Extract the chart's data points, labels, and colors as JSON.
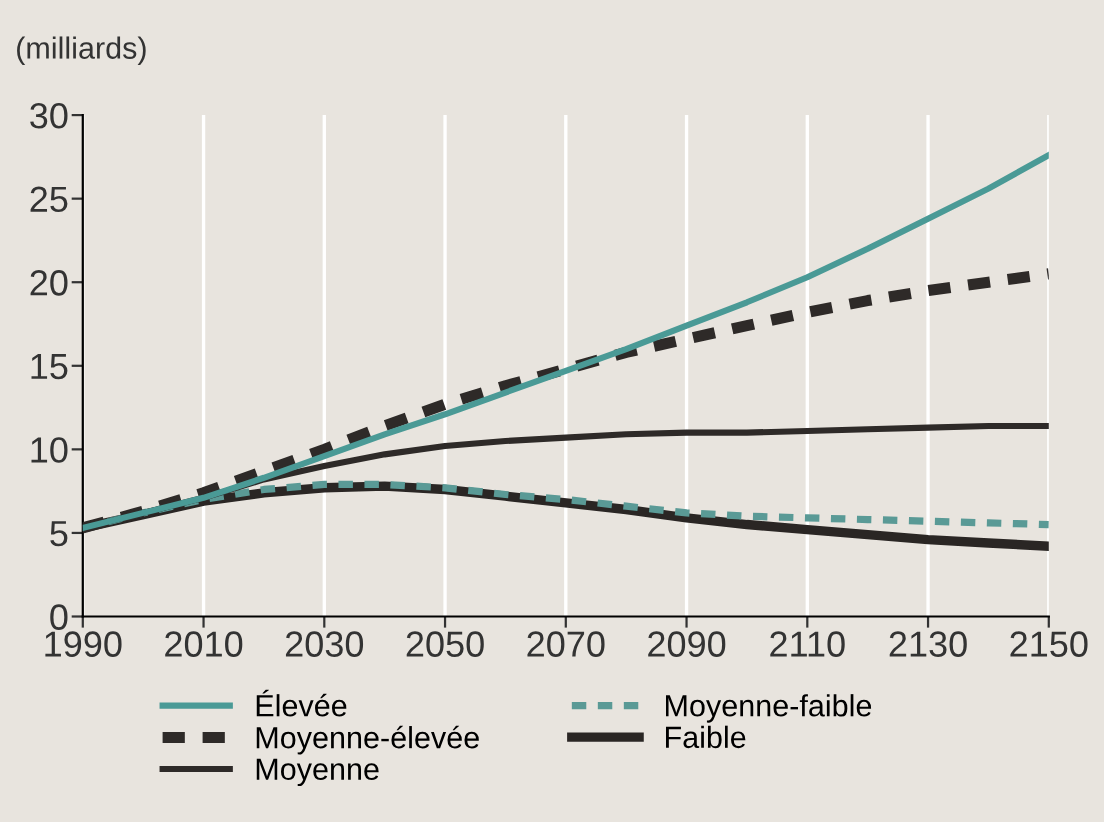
{
  "chart_data": {
    "type": "line",
    "ylabel": "(milliards)",
    "x": [
      1990,
      2000,
      2010,
      2020,
      2030,
      2040,
      2050,
      2060,
      2070,
      2080,
      2090,
      2100,
      2110,
      2120,
      2130,
      2140,
      2150
    ],
    "series": [
      {
        "name": "Élevée",
        "color": "#4a9a96",
        "line_style": "solid",
        "values": [
          5.3,
          6.2,
          7.1,
          8.3,
          9.6,
          10.9,
          12.1,
          13.4,
          14.7,
          16.0,
          17.4,
          18.8,
          20.3,
          22.0,
          23.8,
          25.6,
          27.6
        ]
      },
      {
        "name": "Moyenne-élevée",
        "color": "#2e2a28",
        "line_style": "dashed",
        "values": [
          5.3,
          6.3,
          7.4,
          8.7,
          10.0,
          11.4,
          12.7,
          13.8,
          14.8,
          15.8,
          16.6,
          17.4,
          18.2,
          18.9,
          19.5,
          20.0,
          20.5
        ]
      },
      {
        "name": "Moyenne",
        "color": "#2e2a28",
        "line_style": "solid",
        "values": [
          5.3,
          6.2,
          7.1,
          8.2,
          9.0,
          9.7,
          10.2,
          10.5,
          10.7,
          10.9,
          11.0,
          11.0,
          11.1,
          11.2,
          11.3,
          11.4,
          11.4
        ]
      },
      {
        "name": "Moyenne-faible",
        "color": "#5a9a96",
        "line_style": "dashed",
        "values": [
          5.3,
          6.2,
          7.0,
          7.6,
          7.9,
          7.9,
          7.7,
          7.3,
          7.0,
          6.6,
          6.2,
          6.0,
          5.9,
          5.8,
          5.7,
          5.6,
          5.5
        ]
      },
      {
        "name": "Faible",
        "color": "#2a2624",
        "line_style": "solid",
        "values": [
          5.3,
          6.1,
          6.9,
          7.4,
          7.7,
          7.8,
          7.6,
          7.2,
          6.8,
          6.4,
          5.9,
          5.5,
          5.2,
          4.9,
          4.6,
          4.4,
          4.2
        ]
      }
    ],
    "xlim": [
      1990,
      2150
    ],
    "xticks": [
      1990,
      2010,
      2030,
      2050,
      2070,
      2090,
      2110,
      2130,
      2150
    ],
    "ylim": [
      0,
      30
    ],
    "yticks": [
      0,
      5,
      10,
      15,
      20,
      25,
      30
    ],
    "grid": "x",
    "legend": "bottom"
  }
}
